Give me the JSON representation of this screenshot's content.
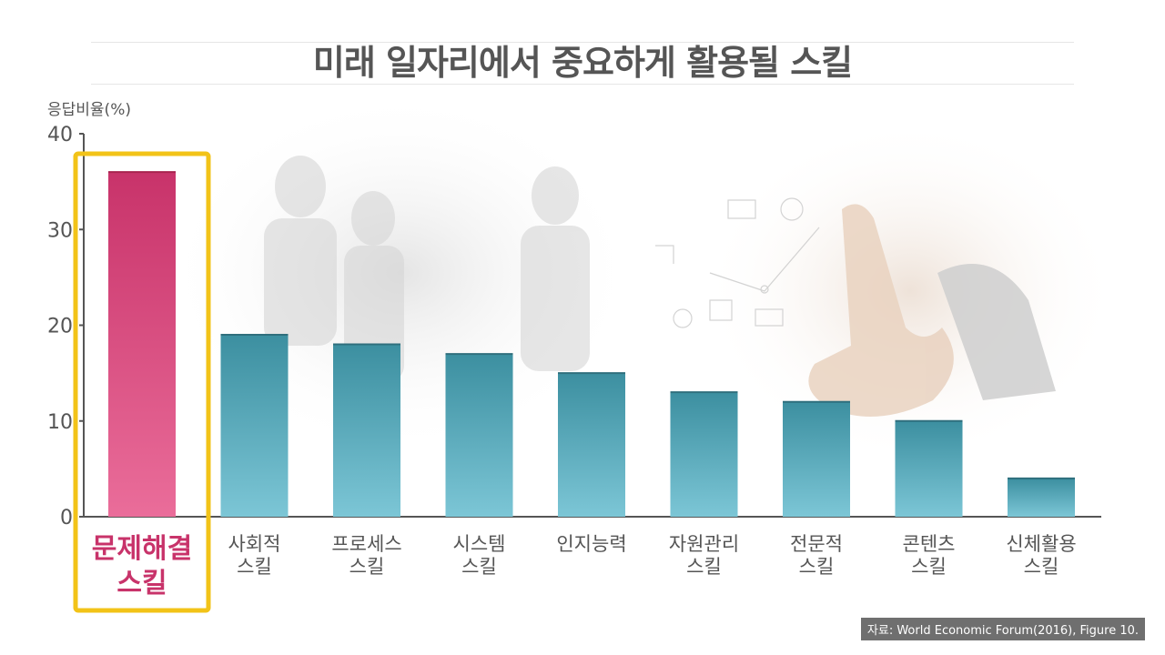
{
  "chart_data": {
    "type": "bar",
    "title": "미래 일자리에서 중요하게 활용될 스킬",
    "ylabel": "응답비율(%)",
    "ylim": [
      0,
      40
    ],
    "yticks": [
      0,
      10,
      20,
      30,
      40
    ],
    "categories": [
      [
        "문제해결",
        "스킬"
      ],
      [
        "사회적",
        "스킬"
      ],
      [
        "프로세스",
        "스킬"
      ],
      [
        "시스템",
        "스킬"
      ],
      [
        "인지능력"
      ],
      [
        "자원관리",
        "스킬"
      ],
      [
        "전문적",
        "스킬"
      ],
      [
        "콘텐츠",
        "스킬"
      ],
      [
        "신체활용",
        "스킬"
      ]
    ],
    "values": [
      36,
      19,
      18,
      17,
      15,
      13,
      12,
      10,
      4
    ],
    "highlight_index": 0
  },
  "source": "자료: World Economic Forum(2016), Figure 10.",
  "colors": {
    "highlight_bar_top": "#c8336a",
    "highlight_bar_bottom": "#ea6d9a",
    "bar_top": "#3c8fa0",
    "bar_bottom": "#7cc6d6",
    "highlight_box": "#f2c318",
    "highlight_label": "#c8336a",
    "text": "#555555"
  }
}
